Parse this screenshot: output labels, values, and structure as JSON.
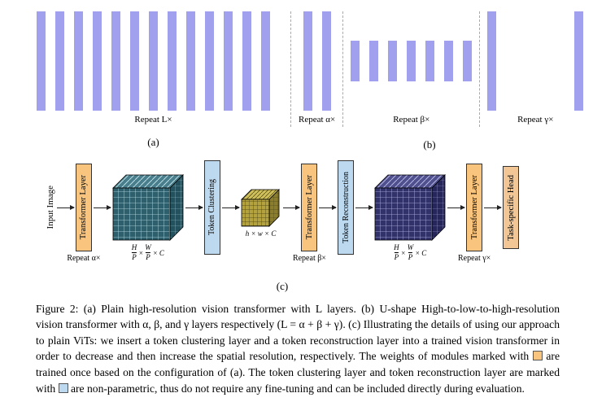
{
  "colors": {
    "bar": "#a0a0ee",
    "transformer_box": "#f9c47d",
    "token_box": "#bdd9f0",
    "head_box": "#f2c795",
    "cube_high_front": "#2e5f6d",
    "cube_low_front": "#b3a23d",
    "cube_high2_front": "#32326b"
  },
  "panel_a": {
    "bar_count": 13,
    "repeat_label": "Repeat L×",
    "caption": "(a)"
  },
  "panel_b": {
    "groups": [
      {
        "id": "alpha",
        "bar_count": 2,
        "bar_size": "tall",
        "label": "Repeat α×"
      },
      {
        "id": "beta",
        "bar_count": 7,
        "bar_size": "short",
        "label": "Repeat β×"
      },
      {
        "id": "gamma",
        "bar_count": 2,
        "bar_size": "tall",
        "label": "Repeat γ×"
      }
    ],
    "caption": "(b)"
  },
  "diagram": {
    "input_label": "Input Image",
    "transformer1": {
      "label": "Transformer Layer",
      "repeat": "Repeat α×"
    },
    "cube_high1": {
      "dims": {
        "n1": "H",
        "d1": "P",
        "x1": "×",
        "n2": "W",
        "d2": "P",
        "x2": "×",
        "c": "C"
      }
    },
    "token_clustering": {
      "label": "Token Clustering"
    },
    "cube_low": {
      "dims_text": "h × w × C"
    },
    "transformer2": {
      "label": "Transformer Layer",
      "repeat": "Repeat β×"
    },
    "token_reconstruction": {
      "label": "Token Reconstruction"
    },
    "cube_high2": {
      "dims": {
        "n1": "H",
        "d1": "P",
        "x1": "×",
        "n2": "W",
        "d2": "P",
        "x2": "×",
        "c": "C"
      }
    },
    "transformer3": {
      "label": "Transformer Layer",
      "repeat": "Repeat γ×"
    },
    "head": {
      "label": "Task-specific Head"
    },
    "caption": "(c)"
  },
  "caption": {
    "part1": "Figure 2: (a) Plain high-resolution vision transformer with L layers. (b) U-shape High-to-low-to-high-resolution vision transformer with α, β, and γ layers respectively (L = α + β + γ). (c) Illustrating the details of using our approach to plain ViTs: we insert a token clustering layer and a token reconstruction layer into a trained vision transformer in order to decrease and then increase the spatial resolution, respectively. The weights of modules marked with",
    "part2": "are trained once based on the configuration of (a). The token clustering layer and token reconstruction layer are marked with",
    "part3": "are non-parametric, thus do not require any fine-tuning and can be included directly during evaluation."
  }
}
